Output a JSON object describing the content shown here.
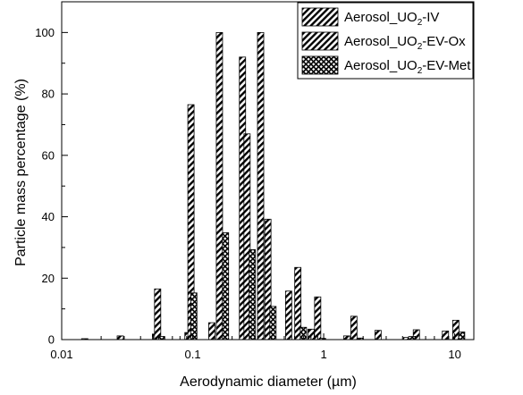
{
  "chart_data": {
    "type": "bar",
    "xscale": "log",
    "xlim": [
      0.01,
      14
    ],
    "ylim": [
      0,
      110
    ],
    "xlabel": "Aerodynamic diameter (µm)",
    "ylabel": "Particle mass percentage (%)",
    "xticks": [
      0.01,
      0.1,
      1,
      10
    ],
    "xtick_labels": [
      "0.01",
      "0.1",
      "1",
      "10"
    ],
    "yticks": [
      0,
      20,
      40,
      60,
      80,
      100
    ],
    "ytick_labels": [
      "0",
      "20",
      "40",
      "60",
      "80",
      "100"
    ],
    "legend_position": "top-right",
    "series": [
      {
        "name": "Aerosol_UO₂-IV",
        "legend_base": "Aerosol_UO",
        "legend_sub": "2",
        "legend_suffix": "-IV",
        "color": "#f07f2a",
        "hatch": "diagonal",
        "points": [
          {
            "x": 0.015,
            "y": 0.3
          },
          {
            "x": 0.028,
            "y": 1.2
          },
          {
            "x": 0.052,
            "y": 1.8
          },
          {
            "x": 0.092,
            "y": 2.3
          },
          {
            "x": 0.14,
            "y": 5.5
          },
          {
            "x": 0.24,
            "y": 92
          },
          {
            "x": 0.33,
            "y": 100
          },
          {
            "x": 0.54,
            "y": 15.8
          },
          {
            "x": 0.8,
            "y": 3.4
          },
          {
            "x": 1.5,
            "y": 1.2
          },
          {
            "x": 4.3,
            "y": 0.7
          },
          {
            "x": 8.5,
            "y": 2.8
          }
        ]
      },
      {
        "name": "Aerosol_UO₂-EV-Ox",
        "legend_base": "Aerosol_UO",
        "legend_sub": "2",
        "legend_suffix": "-EV-Ox",
        "color": "#a35bf2",
        "hatch": "diagonal",
        "points": [
          {
            "x": 0.054,
            "y": 16.5
          },
          {
            "x": 0.097,
            "y": 76.5
          },
          {
            "x": 0.16,
            "y": 100
          },
          {
            "x": 0.26,
            "y": 67
          },
          {
            "x": 0.375,
            "y": 39.2
          },
          {
            "x": 0.635,
            "y": 23.5
          },
          {
            "x": 0.9,
            "y": 13.9
          },
          {
            "x": 1.7,
            "y": 7.6
          },
          {
            "x": 2.6,
            "y": 3
          },
          {
            "x": 5.1,
            "y": 3.2
          },
          {
            "x": 10.2,
            "y": 6.3
          }
        ]
      },
      {
        "name": "Aerosol_UO₂-EV-Met",
        "legend_base": "Aerosol_UO",
        "legend_sub": "2",
        "legend_suffix": "-EV-Met",
        "color": "#1a3f73",
        "hatch": "crosshatch",
        "points": [
          {
            "x": 0.058,
            "y": 1
          },
          {
            "x": 0.102,
            "y": 15.2
          },
          {
            "x": 0.178,
            "y": 34.8
          },
          {
            "x": 0.285,
            "y": 29.3
          },
          {
            "x": 0.41,
            "y": 10.8
          },
          {
            "x": 0.7,
            "y": 4
          },
          {
            "x": 0.98,
            "y": 0.4
          },
          {
            "x": 1.9,
            "y": 0.5
          },
          {
            "x": 4.7,
            "y": 1
          },
          {
            "x": 11.3,
            "y": 2.5
          }
        ]
      }
    ]
  }
}
